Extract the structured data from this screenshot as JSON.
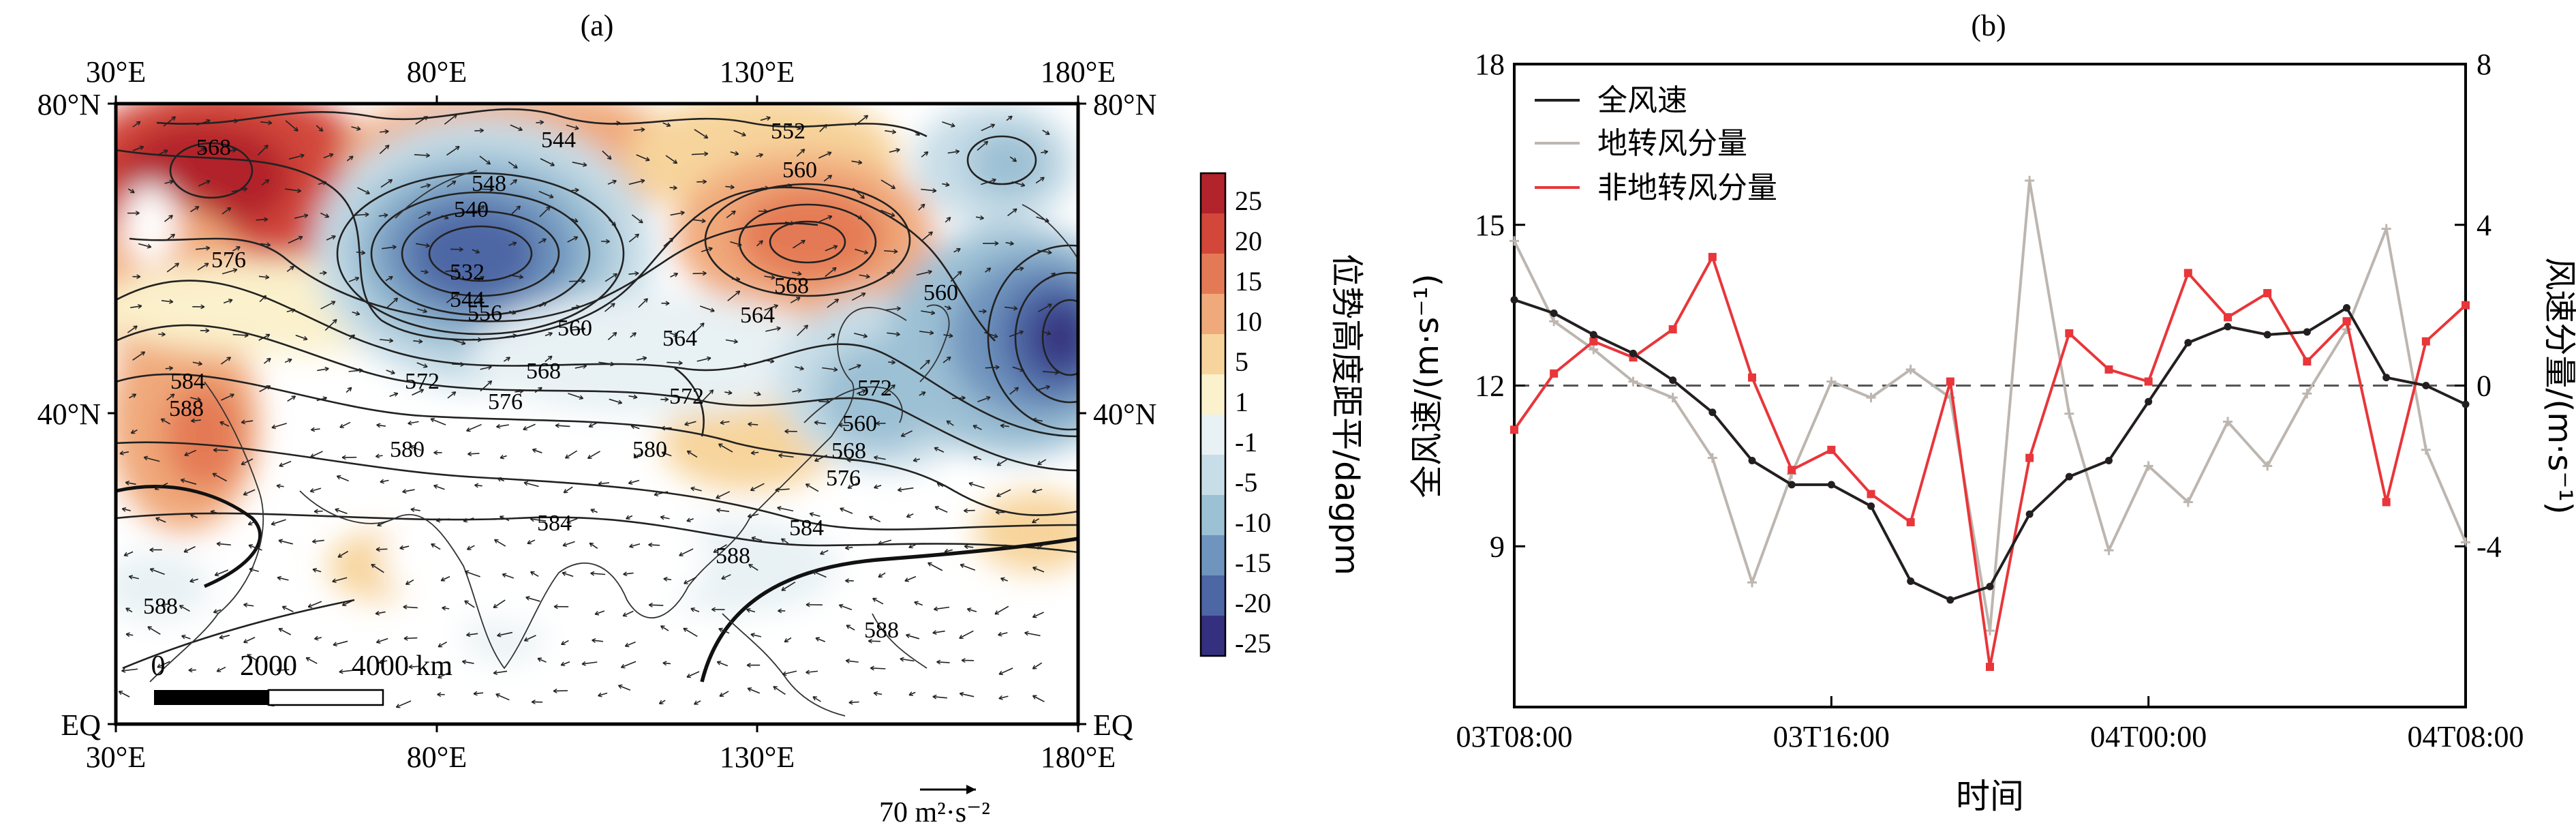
{
  "panel_a": {
    "label": "(a)",
    "lon_ticks": [
      "30°E",
      "80°E",
      "130°E",
      "180°E"
    ],
    "lat_ticks": [
      "80°N",
      "40°N",
      "EQ"
    ],
    "colorbar": {
      "title": "位势高度距平/dagpm",
      "levels": [
        "25",
        "20",
        "15",
        "10",
        "5",
        "1",
        "-1",
        "-5",
        "-10",
        "-15",
        "-20",
        "-25"
      ],
      "colors": [
        "#b2232b",
        "#d2473a",
        "#e47a55",
        "#f0a97a",
        "#f7d49b",
        "#fbf1cc",
        "#e8f1f4",
        "#c7dde7",
        "#9cc0d4",
        "#6f94bd",
        "#4d66a4",
        "#34307f"
      ]
    },
    "contour_labels": [
      "568",
      "548",
      "540",
      "532",
      "544",
      "552",
      "560",
      "544",
      "576",
      "556",
      "560",
      "564",
      "568",
      "560",
      "572",
      "564",
      "568",
      "584",
      "588",
      "572",
      "576",
      "572",
      "580",
      "580",
      "560",
      "568",
      "576",
      "584",
      "588",
      "588",
      "588",
      "584"
    ],
    "scale_bar": {
      "labels": [
        "0",
        "2000",
        "4000 km"
      ]
    },
    "vector_ref": "70 m²·s⁻²"
  },
  "panel_b": {
    "label": "(b)",
    "xlabel": "时间",
    "ylabel_left": "全风速/(m·s⁻¹)",
    "ylabel_right": "风速分量/(m·s⁻¹)",
    "legend": [
      "全风速",
      "地转风分量",
      "非地转风分量"
    ]
  },
  "chart_data": {
    "type": "line",
    "xlabel": "时间",
    "x_ticks": [
      "03T08:00",
      "03T16:00",
      "04T00:00",
      "04T08:00"
    ],
    "x_hours": [
      0,
      1,
      2,
      3,
      4,
      5,
      6,
      7,
      8,
      9,
      10,
      11,
      12,
      13,
      14,
      15,
      16,
      17,
      18,
      19,
      20,
      21,
      22,
      23,
      24
    ],
    "ylim_left": [
      6,
      18
    ],
    "yticks_left": [
      "9",
      "12",
      "15",
      "18"
    ],
    "ylim_right": [
      -8,
      8
    ],
    "yticks_right": [
      "-4",
      "0",
      "4",
      "8"
    ],
    "reference_line_right": 0,
    "series": [
      {
        "name": "全风速",
        "axis": "left",
        "color": "#231f20",
        "marker": "dot",
        "values": [
          13.6,
          13.35,
          12.95,
          12.6,
          12.1,
          11.5,
          10.6,
          10.15,
          10.15,
          9.75,
          8.35,
          8.0,
          8.25,
          9.6,
          10.3,
          10.6,
          11.7,
          12.8,
          13.1,
          12.95,
          13.0,
          13.45,
          12.15,
          12.0,
          11.65
        ]
      },
      {
        "name": "地转风分量",
        "axis": "right",
        "color": "#bdb6b0",
        "marker": "plus",
        "values": [
          3.6,
          1.6,
          0.9,
          0.1,
          -0.3,
          -1.8,
          -4.9,
          -2.2,
          0.1,
          -0.3,
          0.4,
          -0.3,
          -6.1,
          5.1,
          -0.7,
          -4.1,
          -2.0,
          -2.9,
          -0.9,
          -2.0,
          -0.2,
          1.4,
          3.9,
          -1.6,
          -3.9
        ]
      },
      {
        "name": "非地转风分量",
        "axis": "right",
        "color": "#e8363a",
        "marker": "square",
        "values": [
          -1.1,
          0.3,
          1.1,
          0.7,
          1.4,
          3.2,
          0.2,
          -2.1,
          -1.6,
          -2.7,
          -3.4,
          0.1,
          -7.0,
          -1.8,
          1.3,
          0.4,
          0.1,
          2.8,
          1.7,
          2.3,
          0.6,
          1.6,
          -2.9,
          1.1,
          2.0
        ]
      }
    ]
  }
}
